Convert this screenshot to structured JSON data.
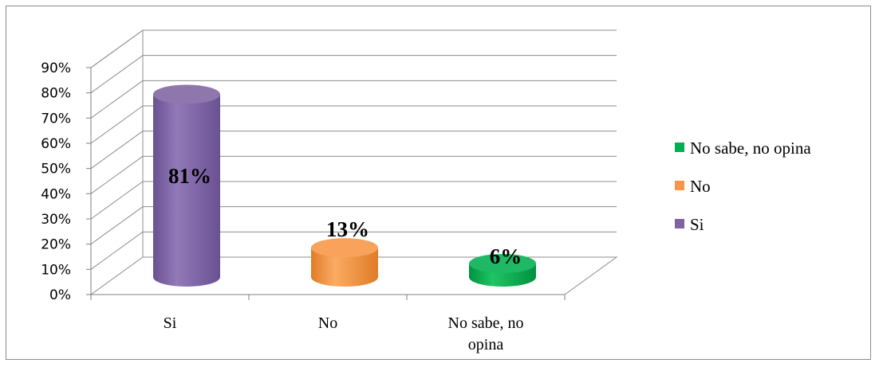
{
  "chart_data": {
    "type": "bar",
    "categories": [
      "Si",
      "No",
      "No sabe, no opina"
    ],
    "values": [
      0.81,
      0.13,
      0.06
    ],
    "data_labels": [
      "81%",
      "13%",
      "6%"
    ],
    "colors": [
      "#8064a2",
      "#f79646",
      "#00b050"
    ],
    "ylim": [
      0,
      0.9
    ],
    "yticks": [
      "0%",
      "10%",
      "20%",
      "30%",
      "40%",
      "50%",
      "60%",
      "70%",
      "80%",
      "90%"
    ],
    "legend": {
      "placement": "right",
      "entries": [
        {
          "label": "No sabe, no opina",
          "color": "#00b050"
        },
        {
          "label": "No",
          "color": "#f79646"
        },
        {
          "label": "Si",
          "color": "#8064a2"
        }
      ]
    },
    "style": "3d-cylinder",
    "grid": true,
    "title": "",
    "xlabel": "",
    "ylabel": ""
  }
}
